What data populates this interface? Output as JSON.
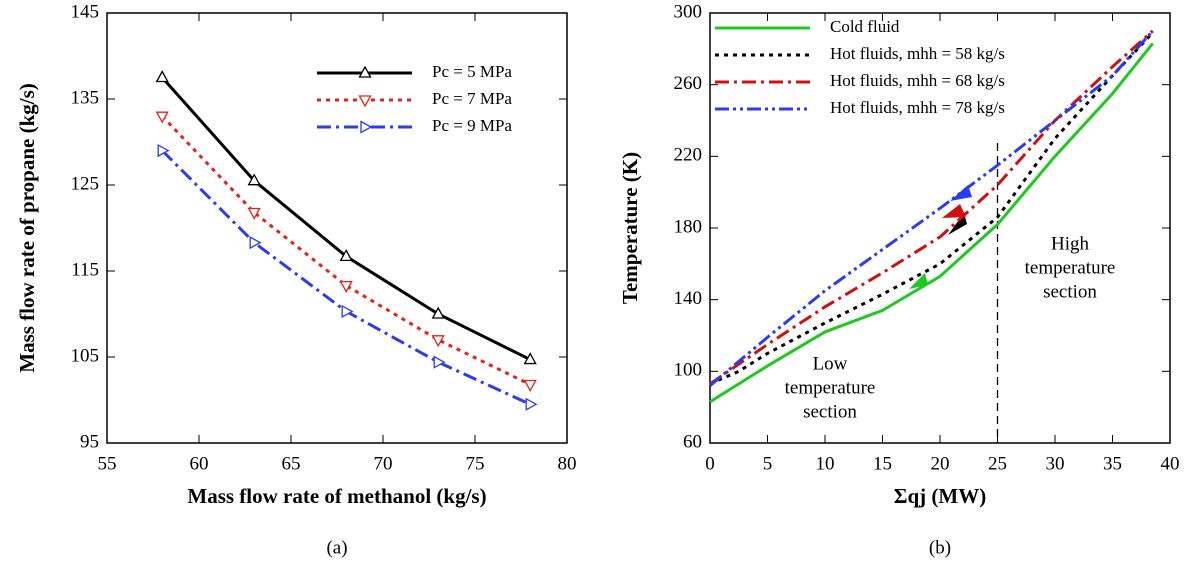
{
  "chart_data": [
    {
      "type": "line",
      "xlabel": "Mass flow rate of methanol (kg/s)",
      "ylabel": "Mass flow rate of propane (kg/s)",
      "caption": "(a)",
      "caption_color": "#000000",
      "xlim": [
        55,
        80
      ],
      "xticks": [
        55,
        60,
        65,
        70,
        75,
        80
      ],
      "ylim": [
        95,
        145
      ],
      "yticks": [
        95,
        105,
        115,
        125,
        135,
        145
      ],
      "legend": "upper right",
      "series": [
        {
          "name": "Pc = 5 MPa",
          "color": "#000000",
          "dash": "solid",
          "marker": "triangle-up",
          "x": [
            58,
            63,
            68,
            73,
            78
          ],
          "values": [
            137.5,
            125.5,
            116.7,
            110,
            104.7
          ]
        },
        {
          "name": "Pc = 7 MPa",
          "color": "#e8201b",
          "dash": "dotted",
          "marker": "triangle-down",
          "x": [
            58,
            63,
            68,
            73,
            78
          ],
          "values": [
            133,
            121.8,
            113.3,
            107,
            101.8
          ]
        },
        {
          "name": "Pc = 9 MPa",
          "color": "#2b3bf0",
          "dash": "dashdot",
          "marker": "triangle-right",
          "x": [
            58,
            63,
            68,
            73,
            78
          ],
          "values": [
            129,
            118.3,
            110.3,
            104.4,
            99.5
          ]
        }
      ]
    },
    {
      "type": "line",
      "xlabel": "Σqj (MW)",
      "ylabel": "Temperature (K)",
      "caption": "(b)",
      "caption_color": "#e8201b",
      "xlim": [
        0,
        40
      ],
      "xticks": [
        0,
        5,
        10,
        15,
        20,
        25,
        30,
        35,
        40
      ],
      "ylim": [
        60,
        300
      ],
      "yticks": [
        60,
        100,
        140,
        180,
        220,
        260,
        300
      ],
      "legend": "upper left",
      "reference_line_x": 25,
      "annotations": [
        [
          "High",
          "temperature",
          "section"
        ],
        [
          "Low",
          "temperature",
          "section"
        ]
      ],
      "series": [
        {
          "name": "Cold fluid",
          "color": "#22c822",
          "dash": "solid",
          "x": [
            0,
            5,
            10,
            15,
            20,
            25,
            30,
            35,
            38.5
          ],
          "values": [
            83,
            103,
            122,
            134,
            153,
            182,
            220,
            255,
            283
          ]
        },
        {
          "name": "Hot fluids, mhh = 58 kg/s",
          "color": "#000000",
          "dash": "dotted",
          "x": [
            0,
            2.5,
            5,
            10,
            15,
            20,
            25,
            30,
            35,
            38.5
          ],
          "values": [
            93,
            100,
            110,
            127,
            143,
            160,
            186,
            230,
            265,
            289
          ]
        },
        {
          "name": "Hot fluids, mhh = 68 kg/s",
          "color": "#d01010",
          "dash": "dashdot",
          "x": [
            0,
            5,
            10,
            15,
            20,
            25,
            30,
            35,
            38.5
          ],
          "values": [
            93,
            115,
            136,
            155,
            175,
            204,
            240,
            270,
            290
          ]
        },
        {
          "name": "Hot fluids, mhh = 78 kg/s",
          "color": "#2b3bf0",
          "dash": "dashdotdot",
          "x": [
            0,
            5,
            10,
            15,
            20,
            25,
            30,
            35,
            38.5
          ],
          "values": [
            92,
            119,
            145,
            168,
            191,
            215,
            240,
            265,
            290
          ]
        }
      ]
    }
  ]
}
